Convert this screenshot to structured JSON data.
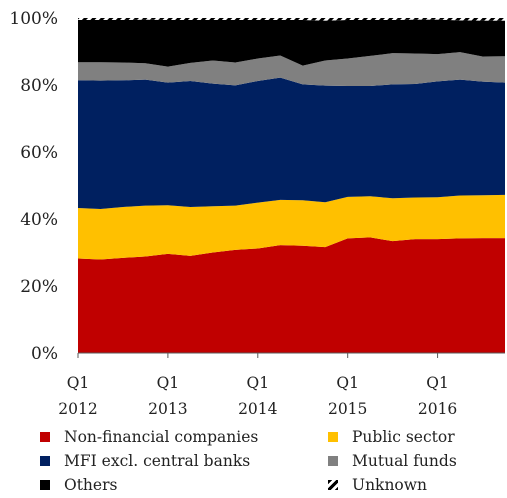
{
  "chart_data": {
    "type": "area",
    "stacked": true,
    "x": [
      "2012Q1",
      "2012Q2",
      "2012Q3",
      "2012Q4",
      "2013Q1",
      "2013Q2",
      "2013Q3",
      "2013Q4",
      "2014Q1",
      "2014Q2",
      "2014Q3",
      "2014Q4",
      "2015Q1",
      "2015Q2",
      "2015Q3",
      "2015Q4",
      "2016Q1",
      "2016Q2",
      "2016Q3",
      "2016Q4"
    ],
    "x_tick_labels": [
      {
        "index": 0,
        "line1": "Q1",
        "line2": "2012"
      },
      {
        "index": 4,
        "line1": "Q1",
        "line2": "2013"
      },
      {
        "index": 8,
        "line1": "Q1",
        "line2": "2014"
      },
      {
        "index": 12,
        "line1": "Q1",
        "line2": "2015"
      },
      {
        "index": 16,
        "line1": "Q1",
        "line2": "2016"
      }
    ],
    "y_ticks": [
      "0%",
      "20%",
      "40%",
      "60%",
      "80%",
      "100%"
    ],
    "ylim": [
      0,
      100
    ],
    "series": [
      {
        "name": "Non-financial companies",
        "color": "#c00000",
        "values": [
          28.2,
          27.9,
          28.4,
          28.8,
          29.6,
          29.0,
          30.0,
          30.8,
          31.2,
          32.2,
          32.0,
          31.6,
          34.2,
          34.5,
          33.4,
          34.0,
          34.0,
          34.2,
          34.3,
          34.3
        ]
      },
      {
        "name": "Public sector",
        "color": "#ffc000",
        "values": [
          15.1,
          15.1,
          15.2,
          15.2,
          14.5,
          14.6,
          13.8,
          13.2,
          13.7,
          13.5,
          13.6,
          13.4,
          12.4,
          12.3,
          12.8,
          12.4,
          12.5,
          12.8,
          12.8,
          12.9
        ]
      },
      {
        "name": "MFI excl. central banks",
        "color": "#002060",
        "values": [
          38.1,
          38.3,
          37.8,
          37.6,
          36.6,
          37.6,
          36.6,
          35.9,
          36.3,
          36.5,
          34.6,
          34.8,
          33.1,
          32.9,
          34.0,
          33.9,
          34.6,
          34.6,
          33.9,
          33.5
        ]
      },
      {
        "name": "Mutual funds",
        "color": "#808080",
        "values": [
          5.4,
          5.5,
          5.3,
          4.9,
          4.8,
          5.4,
          6.9,
          6.8,
          6.7,
          6.6,
          5.6,
          7.5,
          8.2,
          9.0,
          9.3,
          9.1,
          8.1,
          8.2,
          7.5,
          7.9
        ]
      },
      {
        "name": "Others",
        "color": "#000000",
        "values": [
          12.6,
          12.6,
          12.7,
          13.0,
          13.9,
          12.8,
          12.1,
          12.7,
          11.5,
          10.6,
          13.6,
          11.9,
          11.5,
          10.7,
          9.9,
          10.1,
          10.3,
          9.5,
          10.7,
          10.6
        ]
      },
      {
        "name": "Unknown",
        "color": "#000000",
        "pattern": "hatch",
        "values": [
          0.6,
          0.6,
          0.6,
          0.5,
          0.6,
          0.6,
          0.6,
          0.6,
          0.6,
          0.6,
          0.6,
          0.8,
          0.6,
          0.6,
          0.6,
          0.5,
          0.5,
          0.7,
          0.8,
          0.8
        ]
      }
    ],
    "legend_placement": "bottom",
    "grid": false
  }
}
